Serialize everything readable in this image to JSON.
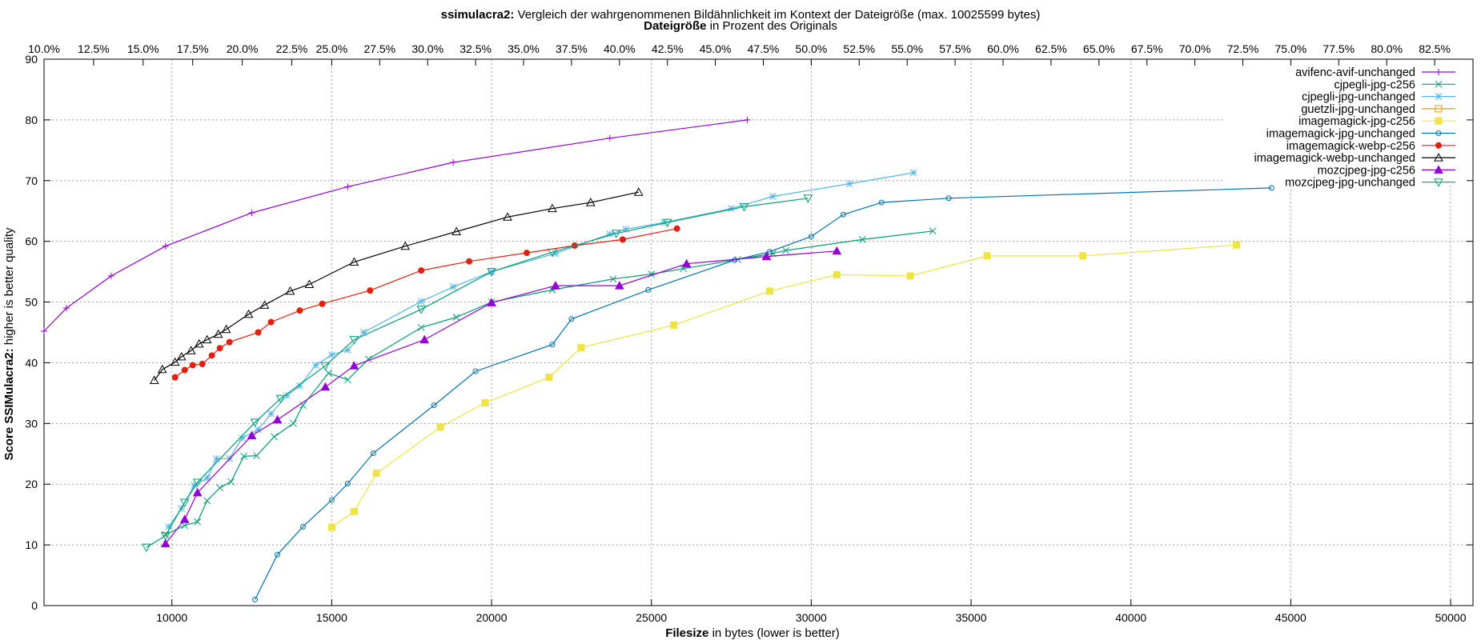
{
  "chart_data": {
    "type": "line",
    "title_bold": "ssimulacra2:",
    "title_rest": "Vergleich der wahrgenommenen Bildähnlichkeit im Kontext der Dateigröße (max. 10025599 bytes)",
    "subtitle_bold": "Dateigröße",
    "subtitle_rest": "in Prozent des Originals",
    "xlabel_bold": "Filesize",
    "xlabel_rest": "in bytes (lower is better)",
    "ylabel_bold": "Score SSIMulacra2:",
    "ylabel_rest": "higher is better quality",
    "xlim": [
      6000,
      50700
    ],
    "ylim": [
      0,
      90
    ],
    "x_ticks": [
      10000,
      15000,
      20000,
      25000,
      30000,
      35000,
      40000,
      45000,
      50000
    ],
    "y_ticks": [
      0,
      10,
      20,
      30,
      40,
      50,
      60,
      70,
      80,
      90
    ],
    "x2_ticks": [
      {
        "label": "10.0%",
        "x": 6000
      },
      {
        "label": "12.5%",
        "x": 7550
      },
      {
        "label": "15.0%",
        "x": 9100
      },
      {
        "label": "17.5%",
        "x": 10650
      },
      {
        "label": "20.0%",
        "x": 12200
      },
      {
        "label": "22.5%",
        "x": 13750
      },
      {
        "label": "25.0%",
        "x": 15000
      },
      {
        "label": "27.5%",
        "x": 16500
      },
      {
        "label": "30.0%",
        "x": 18000
      },
      {
        "label": "32.5%",
        "x": 19500
      },
      {
        "label": "35.0%",
        "x": 21000
      },
      {
        "label": "37.5%",
        "x": 22500
      },
      {
        "label": "40.0%",
        "x": 24000
      },
      {
        "label": "42.5%",
        "x": 25500
      },
      {
        "label": "45.0%",
        "x": 27000
      },
      {
        "label": "47.5%",
        "x": 28500
      },
      {
        "label": "50.0%",
        "x": 30000
      },
      {
        "label": "52.5%",
        "x": 31500
      },
      {
        "label": "55.0%",
        "x": 33000
      },
      {
        "label": "57.5%",
        "x": 34500
      },
      {
        "label": "60.0%",
        "x": 36000
      },
      {
        "label": "62.5%",
        "x": 37500
      },
      {
        "label": "65.0%",
        "x": 39000
      },
      {
        "label": "67.5%",
        "x": 40500
      },
      {
        "label": "70.0%",
        "x": 42000
      },
      {
        "label": "72.5%",
        "x": 43500
      },
      {
        "label": "75.0%",
        "x": 45000
      },
      {
        "label": "77.5%",
        "x": 46500
      },
      {
        "label": "80.0%",
        "x": 48000
      },
      {
        "label": "82.5%",
        "x": 49500
      }
    ],
    "grid": true,
    "legend_position": "top-right",
    "series": [
      {
        "name": "avifenc-avif-unchanged",
        "color": "#9400d3",
        "marker": "plus",
        "points": [
          [
            6000,
            45.2
          ],
          [
            6700,
            49
          ],
          [
            8100,
            54.3
          ],
          [
            9800,
            59.2
          ],
          [
            12500,
            64.7
          ],
          [
            15500,
            69
          ],
          [
            18800,
            73
          ],
          [
            23700,
            77
          ],
          [
            28000,
            80
          ]
        ]
      },
      {
        "name": "cjpegli-jpg-c256",
        "color": "#009e73",
        "marker": "x",
        "points": [
          [
            9800,
            11.7
          ],
          [
            10400,
            13.2
          ],
          [
            10800,
            13.8
          ],
          [
            11100,
            17.3
          ],
          [
            11500,
            19.4
          ],
          [
            11850,
            20.4
          ],
          [
            12250,
            24.6
          ],
          [
            12650,
            24.7
          ],
          [
            13200,
            27.8
          ],
          [
            13800,
            30
          ],
          [
            14100,
            33
          ],
          [
            14900,
            38.3
          ],
          [
            15500,
            37.2
          ],
          [
            16150,
            40.6
          ],
          [
            17800,
            45.8
          ],
          [
            18900,
            47.5
          ],
          [
            20000,
            50
          ],
          [
            21900,
            52
          ],
          [
            23800,
            53.8
          ],
          [
            25000,
            54.6
          ],
          [
            26000,
            55.5
          ],
          [
            27700,
            57
          ],
          [
            28800,
            58
          ],
          [
            29200,
            58.5
          ],
          [
            31600,
            60.3
          ],
          [
            33800,
            61.7
          ]
        ]
      },
      {
        "name": "cjpegli-jpg-unchanged",
        "color": "#56b4e9",
        "marker": "star",
        "points": [
          [
            9900,
            13
          ],
          [
            10300,
            16
          ],
          [
            10700,
            19.8
          ],
          [
            11100,
            21
          ],
          [
            11400,
            24.2
          ],
          [
            11800,
            24.2
          ],
          [
            12200,
            27.6
          ],
          [
            12700,
            29
          ],
          [
            13100,
            31.6
          ],
          [
            13600,
            34.6
          ],
          [
            14000,
            36.2
          ],
          [
            14500,
            39.6
          ],
          [
            15000,
            41.3
          ],
          [
            15500,
            42.1
          ],
          [
            16000,
            45
          ],
          [
            17800,
            50.1
          ],
          [
            18800,
            52.5
          ],
          [
            20000,
            55
          ],
          [
            22000,
            58
          ],
          [
            23700,
            61.2
          ],
          [
            24200,
            62
          ],
          [
            25400,
            63.1
          ],
          [
            27500,
            65.4
          ],
          [
            28800,
            67.4
          ],
          [
            31200,
            69.5
          ],
          [
            33200,
            71.3
          ]
        ]
      },
      {
        "name": "guetzli-jpg-unchanged",
        "color": "#e69f00",
        "marker": "square",
        "points": []
      },
      {
        "name": "imagemagick-jpg-c256",
        "color": "#f0e442",
        "marker": "filled-square",
        "points": [
          [
            15000,
            12.9
          ],
          [
            15700,
            15.5
          ],
          [
            16400,
            21.8
          ],
          [
            18400,
            29.4
          ],
          [
            19800,
            33.4
          ],
          [
            21800,
            37.6
          ],
          [
            22800,
            42.5
          ],
          [
            25700,
            46.2
          ],
          [
            28700,
            51.8
          ],
          [
            30800,
            54.5
          ],
          [
            33100,
            54.3
          ],
          [
            35500,
            57.6
          ],
          [
            38500,
            57.6
          ],
          [
            43300,
            59.4
          ]
        ]
      },
      {
        "name": "imagemagick-jpg-unchanged",
        "color": "#0072b2",
        "marker": "circle",
        "points": [
          [
            12600,
            1
          ],
          [
            13300,
            8.4
          ],
          [
            14100,
            13
          ],
          [
            15000,
            17.4
          ],
          [
            15500,
            20.1
          ],
          [
            16300,
            25.1
          ],
          [
            18200,
            33
          ],
          [
            19500,
            38.6
          ],
          [
            21900,
            43
          ],
          [
            22500,
            47.2
          ],
          [
            24900,
            52
          ],
          [
            27600,
            56.9
          ],
          [
            28700,
            58.3
          ],
          [
            30000,
            60.8
          ],
          [
            31000,
            64.4
          ],
          [
            32200,
            66.4
          ],
          [
            34300,
            67.1
          ],
          [
            44400,
            68.8
          ]
        ]
      },
      {
        "name": "imagemagick-webp-c256",
        "color": "#e51e10",
        "marker": "filled-circle",
        "points": [
          [
            10100,
            37.6
          ],
          [
            10400,
            38.8
          ],
          [
            10650,
            39.6
          ],
          [
            10950,
            39.8
          ],
          [
            11250,
            41.2
          ],
          [
            11500,
            42.4
          ],
          [
            11800,
            43.4
          ],
          [
            12700,
            45
          ],
          [
            13100,
            46.7
          ],
          [
            14000,
            48.6
          ],
          [
            14700,
            49.7
          ],
          [
            16200,
            51.9
          ],
          [
            17800,
            55.2
          ],
          [
            19300,
            56.7
          ],
          [
            21100,
            58.1
          ],
          [
            22600,
            59.3
          ],
          [
            24100,
            60.3
          ],
          [
            25800,
            62.1
          ]
        ]
      },
      {
        "name": "imagemagick-webp-unchanged",
        "color": "#000000",
        "marker": "triangle",
        "points": [
          [
            9450,
            37.1
          ],
          [
            9700,
            38.9
          ],
          [
            10100,
            40.1
          ],
          [
            10300,
            41
          ],
          [
            10600,
            42
          ],
          [
            10850,
            43.1
          ],
          [
            11100,
            43.8
          ],
          [
            11450,
            44.7
          ],
          [
            11700,
            45.5
          ],
          [
            12400,
            48
          ],
          [
            12900,
            49.5
          ],
          [
            13700,
            51.8
          ],
          [
            14300,
            52.9
          ],
          [
            15700,
            56.6
          ],
          [
            17300,
            59.2
          ],
          [
            18900,
            61.6
          ],
          [
            20500,
            64
          ],
          [
            21900,
            65.4
          ],
          [
            23100,
            66.4
          ],
          [
            24600,
            68.1
          ]
        ]
      },
      {
        "name": "mozcjpeg-jpg-c256",
        "color": "#9400d3",
        "marker": "filled-triangle",
        "points": [
          [
            9800,
            10.2
          ],
          [
            10400,
            14.2
          ],
          [
            10800,
            18.6
          ],
          [
            12500,
            28
          ],
          [
            13300,
            30.6
          ],
          [
            14800,
            36
          ],
          [
            15700,
            39.5
          ],
          [
            17900,
            43.8
          ],
          [
            20000,
            49.9
          ],
          [
            22000,
            52.7
          ],
          [
            24000,
            52.7
          ],
          [
            26100,
            56.3
          ],
          [
            28600,
            57.5
          ],
          [
            30800,
            58.4
          ]
        ]
      },
      {
        "name": "mozcjpeg-jpg-unchanged",
        "color": "#009e73",
        "marker": "inv-triangle",
        "points": [
          [
            9200,
            9.6
          ],
          [
            9800,
            11.5
          ],
          [
            10400,
            17
          ],
          [
            10800,
            20.3
          ],
          [
            12600,
            30.2
          ],
          [
            13400,
            34.1
          ],
          [
            14800,
            39.5
          ],
          [
            15700,
            43.8
          ],
          [
            17800,
            48.8
          ],
          [
            20000,
            55
          ],
          [
            21900,
            58.2
          ],
          [
            23900,
            61.3
          ],
          [
            25500,
            63.1
          ],
          [
            27900,
            65.7
          ],
          [
            29900,
            67.1
          ]
        ]
      }
    ]
  }
}
